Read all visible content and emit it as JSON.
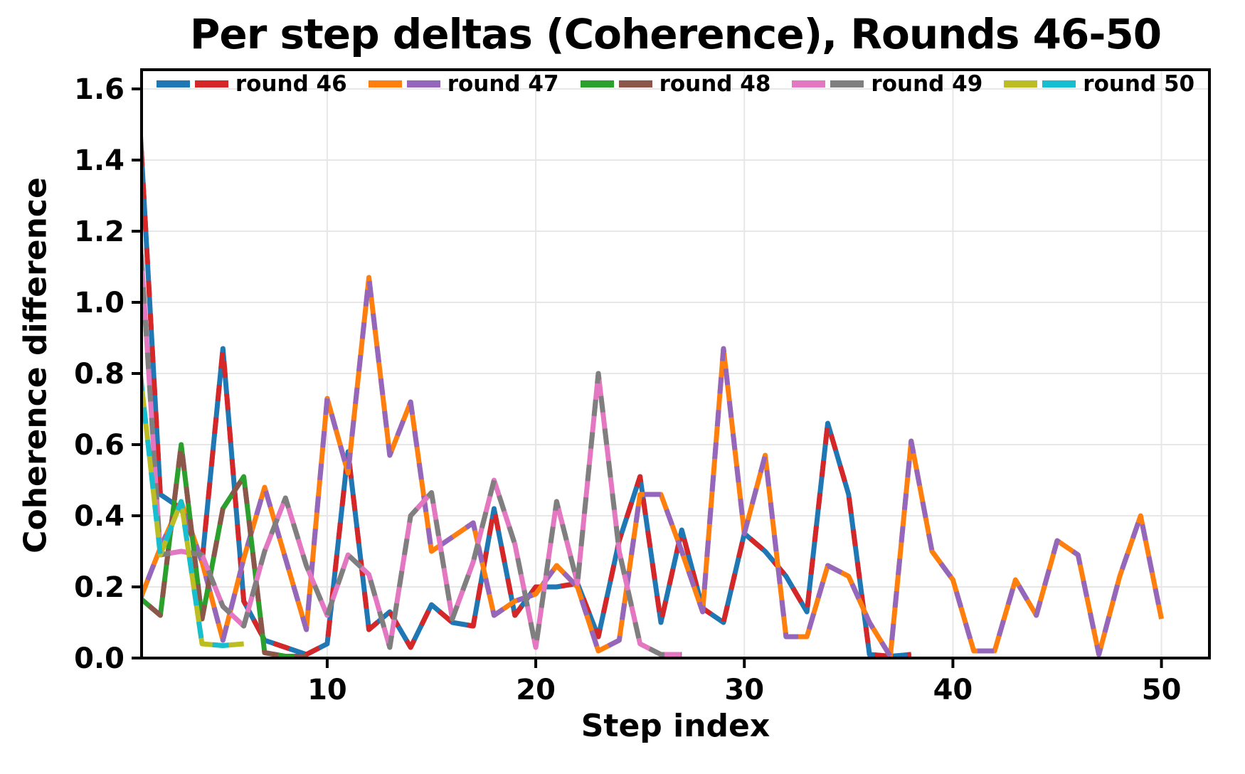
{
  "chart_data": {
    "type": "line",
    "title": "Per step deltas (Coherence), Rounds 46-50",
    "xlabel": "Step index",
    "ylabel": "Coherence difference",
    "xlim": [
      1.1,
      52.3
    ],
    "ylim": [
      0,
      1.654
    ],
    "x_ticks": [
      10,
      20,
      30,
      40,
      50
    ],
    "y_ticks": [
      0.0,
      0.2,
      0.4,
      0.6,
      0.8,
      1.0,
      1.2,
      1.4,
      1.6
    ],
    "grid": true,
    "grid_color": "#e7e7e7",
    "spine_color": "#000000",
    "legend_position": "top",
    "x_start_step": 1,
    "line_width": 7,
    "dash_pattern": [
      23,
      23
    ],
    "series": [
      {
        "name": "round 46",
        "color_a": "#1f77b4",
        "color_b": "#d62728",
        "values": [
          1.52,
          0.46,
          0.42,
          0.27,
          0.87,
          0.16,
          0.05,
          0.03,
          0.01,
          0.04,
          0.58,
          0.08,
          0.13,
          0.03,
          0.15,
          0.1,
          0.09,
          0.42,
          0.12,
          0.2,
          0.2,
          0.21,
          0.06,
          0.33,
          0.51,
          0.1,
          0.36,
          0.14,
          0.1,
          0.35,
          0.3,
          0.23,
          0.13,
          0.66,
          0.46,
          0.01,
          0.005,
          0.01
        ]
      },
      {
        "name": "round 47",
        "color_a": "#ff7f0e",
        "color_b": "#9467bd",
        "values": [
          0.16,
          0.31,
          0.44,
          0.27,
          0.05,
          0.28,
          0.48,
          0.28,
          0.08,
          0.73,
          0.52,
          1.07,
          0.57,
          0.72,
          0.3,
          0.34,
          0.38,
          0.12,
          0.16,
          0.18,
          0.26,
          0.2,
          0.02,
          0.05,
          0.46,
          0.46,
          0.3,
          0.13,
          0.87,
          0.35,
          0.57,
          0.06,
          0.06,
          0.26,
          0.23,
          0.1,
          0.005,
          0.61,
          0.3,
          0.22,
          0.02,
          0.02,
          0.22,
          0.12,
          0.33,
          0.29,
          0.01,
          0.23,
          0.4,
          0.11
        ]
      },
      {
        "name": "round 48",
        "color_a": "#2ca02c",
        "color_b": "#8c564b",
        "values": [
          0.17,
          0.12,
          0.6,
          0.11,
          0.42,
          0.51,
          0.015,
          0.005,
          0.005
        ]
      },
      {
        "name": "round 49",
        "color_a": "#e377c2",
        "color_b": "#7f7f7f",
        "values": [
          1.21,
          0.29,
          0.3,
          0.29,
          0.145,
          0.09,
          0.3,
          0.45,
          0.26,
          0.12,
          0.29,
          0.235,
          0.03,
          0.4,
          0.465,
          0.11,
          0.27,
          0.5,
          0.32,
          0.03,
          0.44,
          0.21,
          0.8,
          0.3,
          0.04,
          0.01,
          0.01
        ]
      },
      {
        "name": "round 50",
        "color_a": "#bcbd22",
        "color_b": "#17becf",
        "values": [
          0.82,
          0.29,
          0.44,
          0.04,
          0.035,
          0.04
        ]
      }
    ]
  }
}
